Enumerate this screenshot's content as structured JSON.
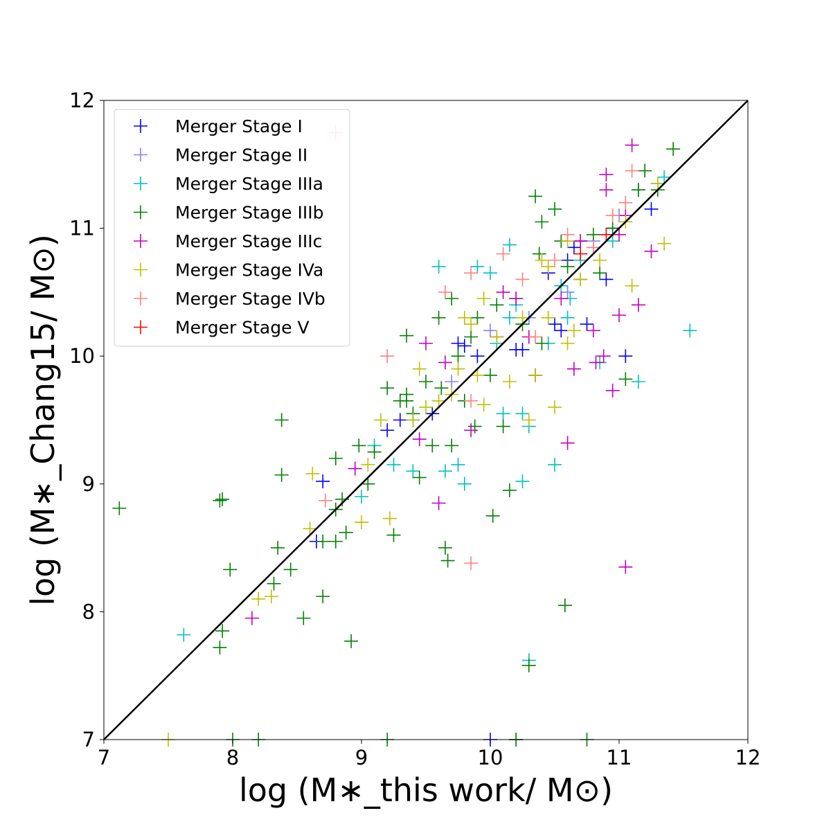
{
  "chart_data": {
    "type": "scatter",
    "title": "",
    "xlabel": "log (M∗_this work/ M⊙)",
    "ylabel": "log (M∗_Chang15/ M⊙)",
    "xlim": [
      7,
      12
    ],
    "ylim": [
      7,
      12
    ],
    "xticks": [
      "7",
      "8",
      "9",
      "10",
      "11",
      "12"
    ],
    "yticks": [
      "7",
      "8",
      "9",
      "10",
      "11",
      "12"
    ],
    "grid": false,
    "legend_position": "top-left",
    "marker": "plus",
    "reference_line": {
      "name": "one-to-one",
      "x": [
        7,
        12
      ],
      "y": [
        7,
        12
      ],
      "color": "#000000"
    },
    "series": [
      {
        "name": "Merger Stage I",
        "color": "#0000ff",
        "points": [
          [
            8.7,
            9.02
          ],
          [
            8.65,
            8.55
          ],
          [
            9.2,
            9.42
          ],
          [
            9.3,
            9.5
          ],
          [
            9.55,
            9.55
          ],
          [
            9.75,
            10.1
          ],
          [
            9.8,
            10.08
          ],
          [
            9.9,
            10.0
          ],
          [
            10.2,
            10.05
          ],
          [
            10.25,
            10.05
          ],
          [
            10.5,
            10.25
          ],
          [
            10.55,
            10.2
          ],
          [
            10.75,
            10.25
          ],
          [
            10.65,
            10.85
          ],
          [
            10.7,
            10.9
          ],
          [
            10.8,
            10.85
          ],
          [
            10.9,
            10.6
          ],
          [
            10.95,
            11.0
          ],
          [
            11.05,
            10.0
          ],
          [
            11.25,
            11.15
          ],
          [
            10.0,
            7.0
          ],
          [
            10.6,
            10.75
          ],
          [
            10.45,
            10.65
          ]
        ]
      },
      {
        "name": "Merger Stage II",
        "color": "#8080ff",
        "points": [
          [
            9.4,
            9.5
          ],
          [
            9.7,
            9.8
          ],
          [
            10.0,
            10.2
          ],
          [
            10.3,
            10.3
          ],
          [
            10.6,
            10.5
          ],
          [
            10.8,
            10.9
          ],
          [
            11.0,
            11.1
          ],
          [
            11.15,
            11.3
          ]
        ]
      },
      {
        "name": "Merger Stage IIIa",
        "color": "#00bfbf",
        "points": [
          [
            7.62,
            7.82
          ],
          [
            9.0,
            8.9
          ],
          [
            9.1,
            9.3
          ],
          [
            9.25,
            9.15
          ],
          [
            9.4,
            9.1
          ],
          [
            9.6,
            10.7
          ],
          [
            9.65,
            9.1
          ],
          [
            9.8,
            9.0
          ],
          [
            9.9,
            10.7
          ],
          [
            10.05,
            10.1
          ],
          [
            10.1,
            9.55
          ],
          [
            10.15,
            10.87
          ],
          [
            10.25,
            9.55
          ],
          [
            10.25,
            9.02
          ],
          [
            10.3,
            9.45
          ],
          [
            10.3,
            7.62
          ],
          [
            10.45,
            10.1
          ],
          [
            10.5,
            9.15
          ],
          [
            10.55,
            10.55
          ],
          [
            10.62,
            10.45
          ],
          [
            10.7,
            10.75
          ],
          [
            10.85,
            9.95
          ],
          [
            11.15,
            9.8
          ],
          [
            11.55,
            10.2
          ],
          [
            10.2,
            10.4
          ],
          [
            10.6,
            10.3
          ],
          [
            10.95,
            10.9
          ],
          [
            11.3,
            11.35
          ],
          [
            11.35,
            11.4
          ],
          [
            9.75,
            9.15
          ],
          [
            10.0,
            10.65
          ],
          [
            10.15,
            10.3
          ]
        ]
      },
      {
        "name": "Merger Stage IIIb",
        "color": "#008000",
        "points": [
          [
            7.12,
            8.81
          ],
          [
            7.9,
            8.87
          ],
          [
            7.92,
            8.88
          ],
          [
            7.9,
            7.72
          ],
          [
            7.92,
            7.85
          ],
          [
            7.98,
            8.33
          ],
          [
            8.0,
            7.0
          ],
          [
            8.2,
            7.0
          ],
          [
            8.32,
            8.22
          ],
          [
            8.35,
            8.5
          ],
          [
            8.38,
            9.07
          ],
          [
            8.38,
            9.5
          ],
          [
            8.45,
            8.33
          ],
          [
            8.55,
            7.95
          ],
          [
            8.7,
            8.55
          ],
          [
            8.7,
            8.12
          ],
          [
            8.8,
            8.8
          ],
          [
            8.8,
            8.55
          ],
          [
            8.8,
            9.2
          ],
          [
            8.85,
            8.88
          ],
          [
            8.88,
            8.62
          ],
          [
            8.92,
            7.77
          ],
          [
            8.98,
            9.3
          ],
          [
            9.05,
            9.0
          ],
          [
            9.1,
            9.25
          ],
          [
            9.2,
            9.75
          ],
          [
            9.25,
            8.6
          ],
          [
            9.3,
            9.65
          ],
          [
            9.35,
            9.7
          ],
          [
            9.35,
            10.16
          ],
          [
            9.45,
            9.05
          ],
          [
            9.5,
            9.8
          ],
          [
            9.55,
            9.3
          ],
          [
            9.6,
            10.3
          ],
          [
            9.62,
            9.75
          ],
          [
            9.65,
            8.5
          ],
          [
            9.67,
            8.4
          ],
          [
            9.7,
            10.45
          ],
          [
            9.7,
            9.3
          ],
          [
            9.75,
            10.0
          ],
          [
            9.8,
            9.65
          ],
          [
            9.85,
            10.15
          ],
          [
            9.88,
            9.45
          ],
          [
            9.9,
            10.3
          ],
          [
            10.0,
            9.85
          ],
          [
            10.02,
            8.75
          ],
          [
            10.05,
            10.4
          ],
          [
            10.1,
            9.45
          ],
          [
            10.15,
            8.95
          ],
          [
            10.2,
            7.0
          ],
          [
            10.2,
            7.0
          ],
          [
            10.2,
            10.45
          ],
          [
            10.3,
            7.58
          ],
          [
            10.35,
            11.25
          ],
          [
            10.38,
            10.8
          ],
          [
            10.4,
            11.05
          ],
          [
            10.55,
            10.9
          ],
          [
            10.58,
            8.05
          ],
          [
            10.5,
            11.15
          ],
          [
            10.6,
            10.7
          ],
          [
            10.7,
            10.6
          ],
          [
            10.75,
            7.0
          ],
          [
            10.8,
            10.95
          ],
          [
            10.95,
            11.0
          ],
          [
            11.05,
            9.82
          ],
          [
            11.15,
            11.3
          ],
          [
            11.2,
            11.45
          ],
          [
            11.3,
            11.3
          ],
          [
            11.42,
            11.62
          ],
          [
            9.2,
            7.0
          ],
          [
            10.25,
            10.25
          ],
          [
            10.85,
            10.65
          ],
          [
            10.4,
            10.1
          ],
          [
            9.35,
            9.65
          ],
          [
            9.4,
            9.55
          ]
        ]
      },
      {
        "name": "Merger Stage IIIc",
        "color": "#bf00bf",
        "points": [
          [
            8.15,
            7.95
          ],
          [
            8.95,
            9.12
          ],
          [
            9.45,
            9.35
          ],
          [
            9.5,
            10.1
          ],
          [
            9.6,
            8.85
          ],
          [
            9.65,
            9.95
          ],
          [
            9.85,
            9.42
          ],
          [
            10.05,
            10.15
          ],
          [
            10.1,
            10.5
          ],
          [
            10.2,
            10.45
          ],
          [
            10.35,
            9.85
          ],
          [
            10.6,
            9.32
          ],
          [
            10.65,
            9.9
          ],
          [
            10.82,
            9.95
          ],
          [
            10.88,
            10.0
          ],
          [
            10.95,
            9.73
          ],
          [
            11.0,
            10.32
          ],
          [
            11.05,
            8.35
          ],
          [
            11.1,
            11.65
          ],
          [
            11.15,
            10.4
          ],
          [
            11.25,
            10.82
          ],
          [
            10.9,
            11.3
          ],
          [
            11.0,
            10.95
          ],
          [
            10.55,
            10.45
          ],
          [
            10.7,
            10.9
          ],
          [
            10.9,
            11.42
          ],
          [
            11.05,
            11.1
          ],
          [
            10.3,
            10.15
          ],
          [
            10.8,
            10.2
          ]
        ]
      },
      {
        "name": "Merger Stage IVa",
        "color": "#bfbf00",
        "points": [
          [
            7.5,
            7.0
          ],
          [
            8.3,
            8.12
          ],
          [
            8.2,
            8.1
          ],
          [
            8.6,
            8.65
          ],
          [
            8.62,
            9.08
          ],
          [
            9.0,
            8.7
          ],
          [
            9.05,
            9.15
          ],
          [
            9.15,
            9.5
          ],
          [
            9.22,
            8.73
          ],
          [
            9.4,
            9.5
          ],
          [
            9.45,
            9.9
          ],
          [
            9.5,
            9.6
          ],
          [
            9.6,
            9.65
          ],
          [
            9.7,
            9.7
          ],
          [
            9.8,
            10.3
          ],
          [
            9.9,
            9.85
          ],
          [
            9.95,
            10.45
          ],
          [
            9.95,
            9.62
          ],
          [
            10.05,
            10.15
          ],
          [
            10.15,
            9.8
          ],
          [
            10.3,
            9.5
          ],
          [
            10.35,
            9.85
          ],
          [
            10.45,
            10.3
          ],
          [
            10.5,
            9.6
          ],
          [
            10.6,
            10.1
          ],
          [
            10.6,
            10.9
          ],
          [
            10.65,
            10.2
          ],
          [
            10.7,
            10.6
          ],
          [
            11.1,
            10.55
          ],
          [
            11.3,
            11.35
          ],
          [
            11.35,
            10.88
          ],
          [
            10.25,
            10.3
          ],
          [
            9.75,
            9.9
          ],
          [
            10.85,
            10.75
          ],
          [
            11.05,
            11.05
          ],
          [
            10.4,
            10.75
          ],
          [
            10.45,
            10.7
          ],
          [
            9.85,
            10.25
          ]
        ]
      },
      {
        "name": "Merger Stage IVb",
        "color": "#ff8080",
        "points": [
          [
            8.8,
            11.75
          ],
          [
            9.2,
            10.0
          ],
          [
            8.72,
            8.87
          ],
          [
            9.65,
            10.5
          ],
          [
            9.85,
            10.65
          ],
          [
            9.85,
            9.65
          ],
          [
            9.85,
            8.38
          ],
          [
            10.1,
            10.8
          ],
          [
            10.35,
            10.15
          ],
          [
            10.6,
            10.95
          ],
          [
            10.8,
            10.85
          ],
          [
            11.05,
            11.2
          ],
          [
            11.1,
            11.45
          ],
          [
            10.25,
            10.6
          ],
          [
            10.5,
            10.75
          ],
          [
            10.95,
            11.1
          ]
        ]
      },
      {
        "name": "Merger Stage V",
        "color": "#ff0000",
        "points": [
          [
            10.7,
            10.8
          ],
          [
            10.9,
            10.95
          ]
        ]
      }
    ]
  }
}
